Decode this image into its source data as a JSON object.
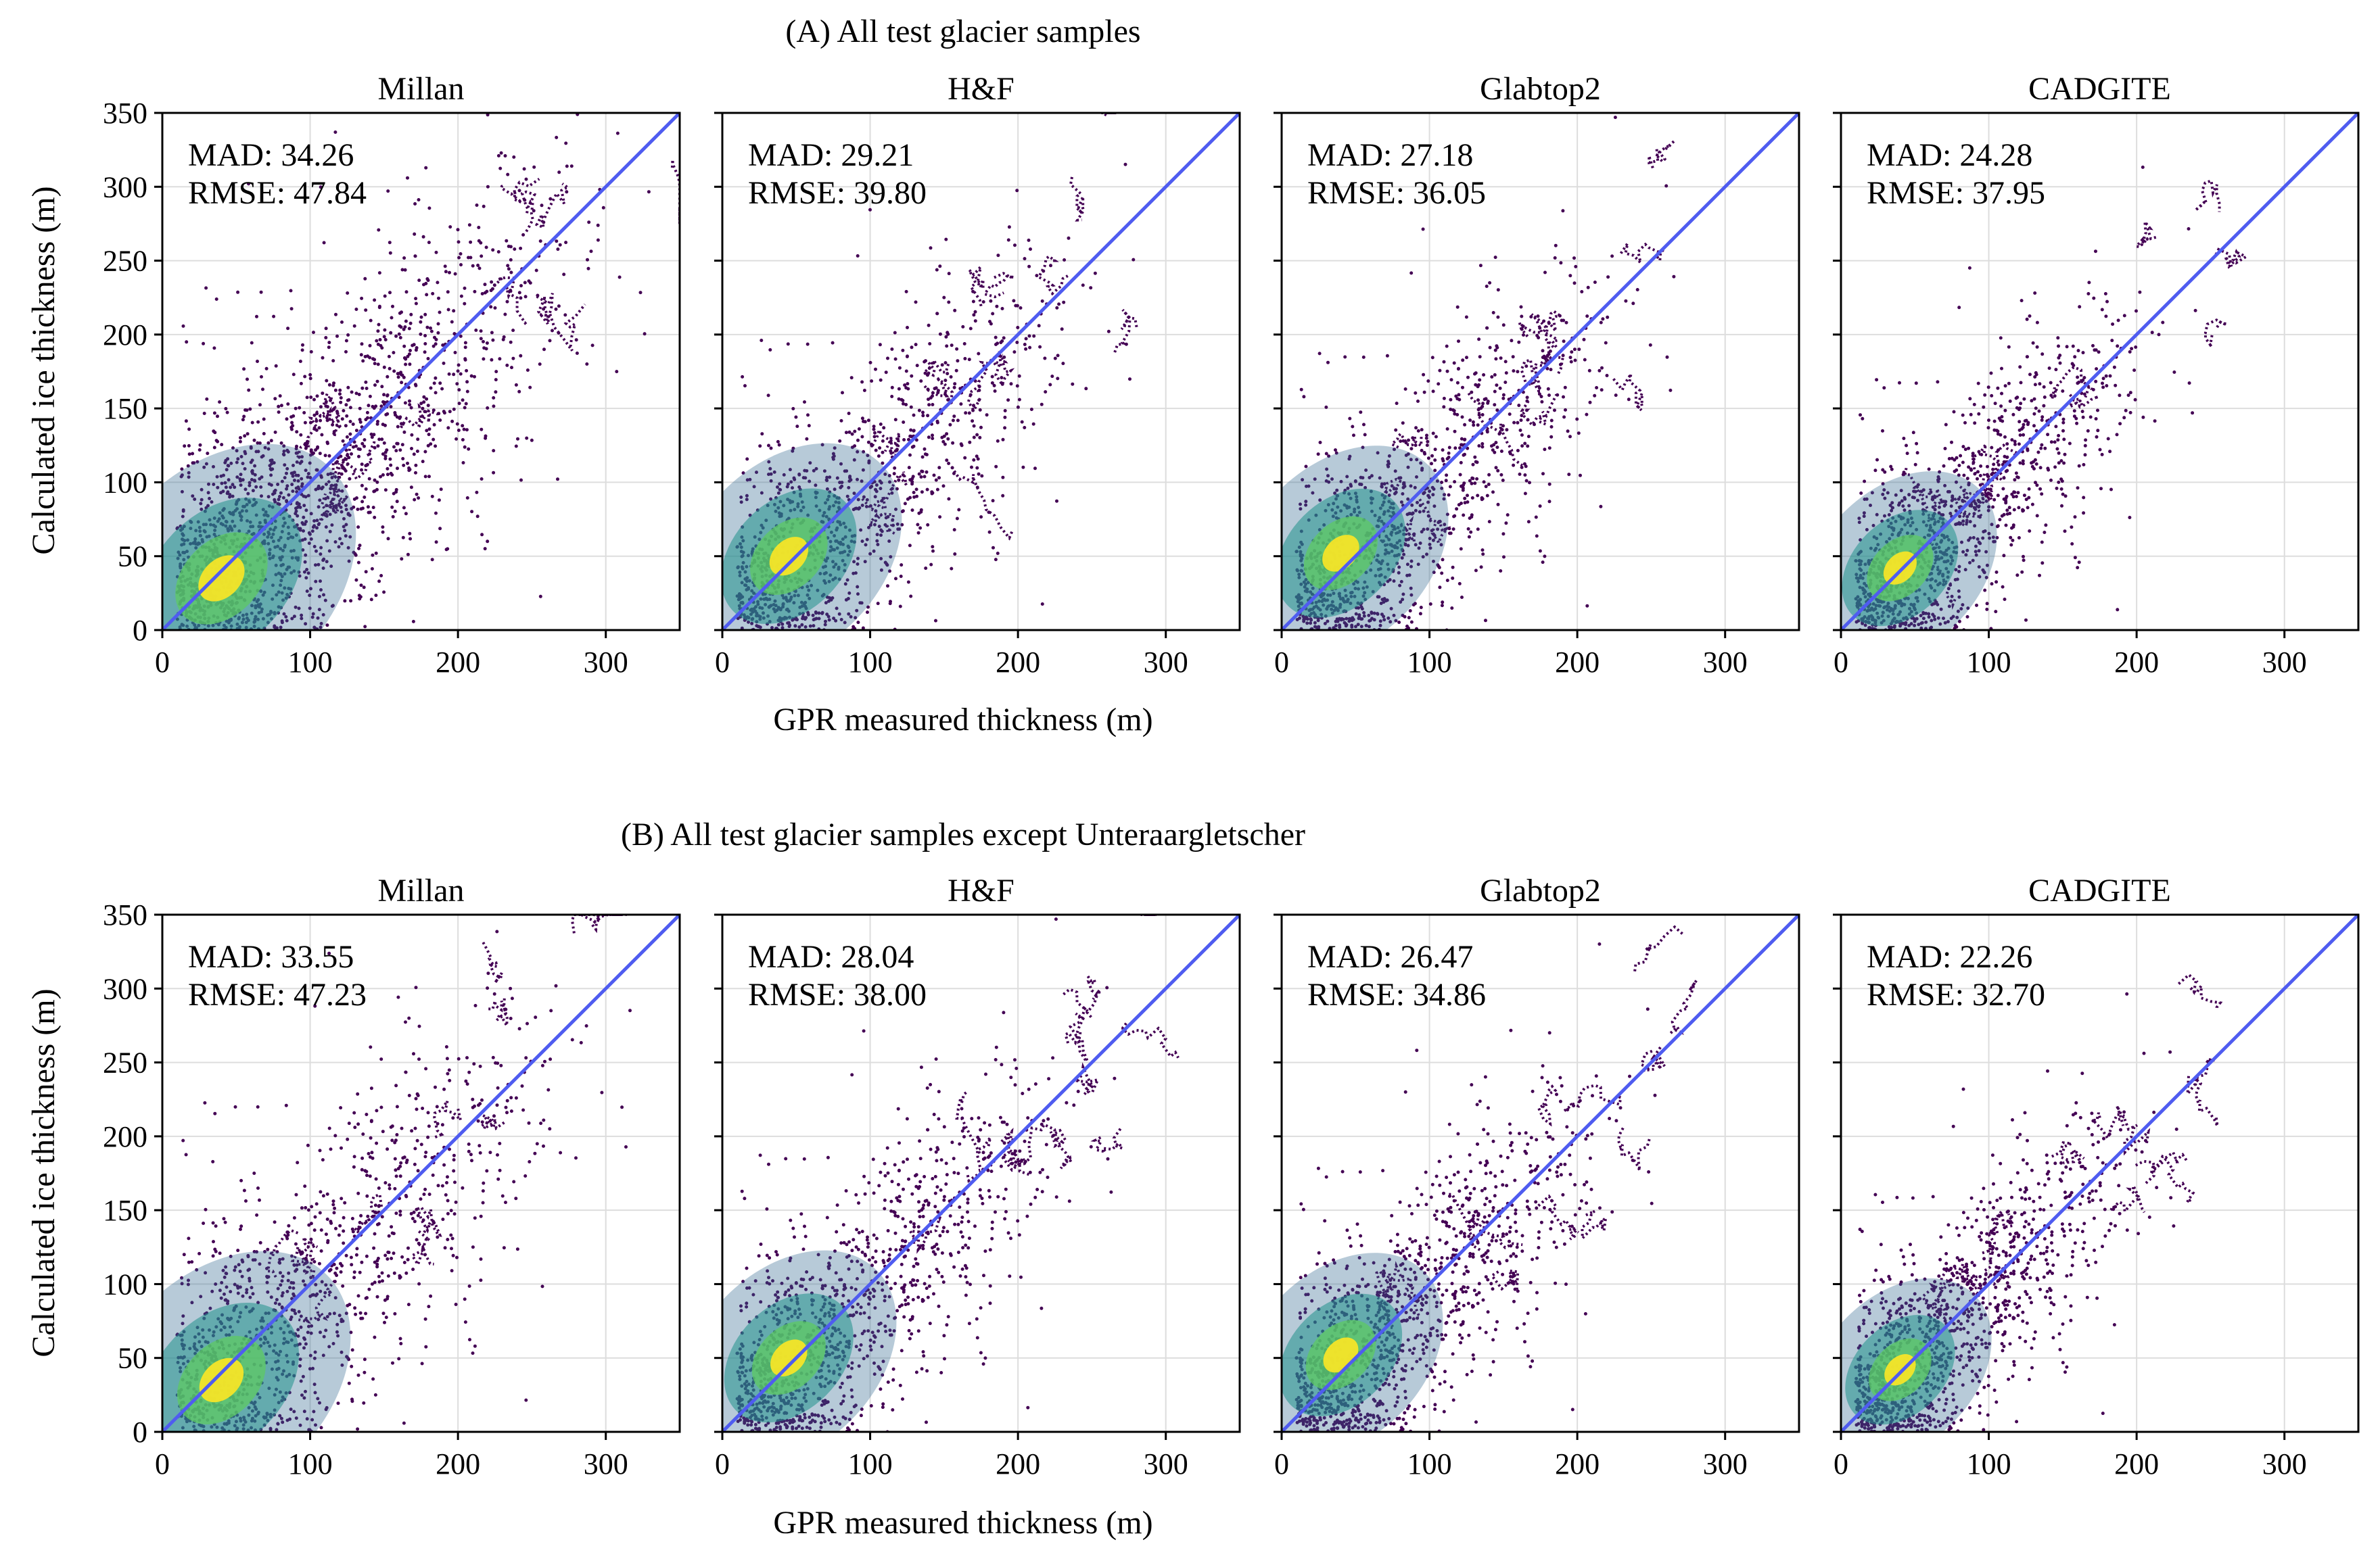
{
  "figure": {
    "shared_xlabel": "GPR measured thickness (m)",
    "shared_ylabel": "Calculated ice thickness (m)"
  },
  "colors": {
    "identity_line": "#4f5cf0",
    "scatter_low": "#440154",
    "scatter_mid": "#31688e",
    "scatter_high": "#fde725",
    "grid": "#dddddd"
  },
  "chart_data": [
    {
      "type": "scatter",
      "row_title": "(A) All test glacier samples",
      "panels": [
        {
          "title": "Millan",
          "mad_label": "MAD: 34.26",
          "rmse_label": "RMSE: 47.84",
          "mad": 34.26,
          "rmse": 47.84,
          "density_peak": [
            40,
            35
          ],
          "spread": 1.25
        },
        {
          "title": "H&F",
          "mad_label": "MAD: 29.21",
          "rmse_label": "RMSE: 39.80",
          "mad": 29.21,
          "rmse": 39.8,
          "density_peak": [
            45,
            50
          ],
          "spread": 1.05
        },
        {
          "title": "Glabtop2",
          "mad_label": "MAD: 27.18",
          "rmse_label": "RMSE: 36.05",
          "mad": 27.18,
          "rmse": 36.05,
          "density_peak": [
            40,
            52
          ],
          "spread": 1.0
        },
        {
          "title": "CADGITE",
          "mad_label": "MAD: 24.28",
          "rmse_label": "RMSE: 37.95",
          "mad": 24.28,
          "rmse": 37.95,
          "density_peak": [
            40,
            42
          ],
          "spread": 0.9
        }
      ],
      "x_ticks": [
        0,
        100,
        200,
        300
      ],
      "y_ticks": [
        0,
        50,
        100,
        150,
        200,
        250,
        300,
        350
      ],
      "xlim": [
        0,
        350
      ],
      "ylim": [
        0,
        350
      ],
      "grid": true,
      "identity_line": true
    },
    {
      "type": "scatter",
      "row_title": "(B) All test glacier samples except Unteraargletscher",
      "panels": [
        {
          "title": "Millan",
          "mad_label": "MAD: 33.55",
          "rmse_label": "RMSE: 47.23",
          "mad": 33.55,
          "rmse": 47.23,
          "density_peak": [
            40,
            35
          ],
          "spread": 1.2
        },
        {
          "title": "H&F",
          "mad_label": "MAD: 28.04",
          "rmse_label": "RMSE: 38.00",
          "mad": 28.04,
          "rmse": 38.0,
          "density_peak": [
            45,
            50
          ],
          "spread": 1.0
        },
        {
          "title": "Glabtop2",
          "mad_label": "MAD: 26.47",
          "rmse_label": "RMSE: 34.86",
          "mad": 26.47,
          "rmse": 34.86,
          "density_peak": [
            40,
            52
          ],
          "spread": 0.95
        },
        {
          "title": "CADGITE",
          "mad_label": "MAD: 22.26",
          "rmse_label": "RMSE: 32.70",
          "mad": 22.26,
          "rmse": 32.7,
          "density_peak": [
            40,
            42
          ],
          "spread": 0.85
        }
      ],
      "x_ticks": [
        0,
        100,
        200,
        300
      ],
      "y_ticks": [
        0,
        50,
        100,
        150,
        200,
        250,
        300,
        350
      ],
      "xlim": [
        0,
        350
      ],
      "ylim": [
        0,
        350
      ],
      "grid": true,
      "identity_line": true
    }
  ]
}
